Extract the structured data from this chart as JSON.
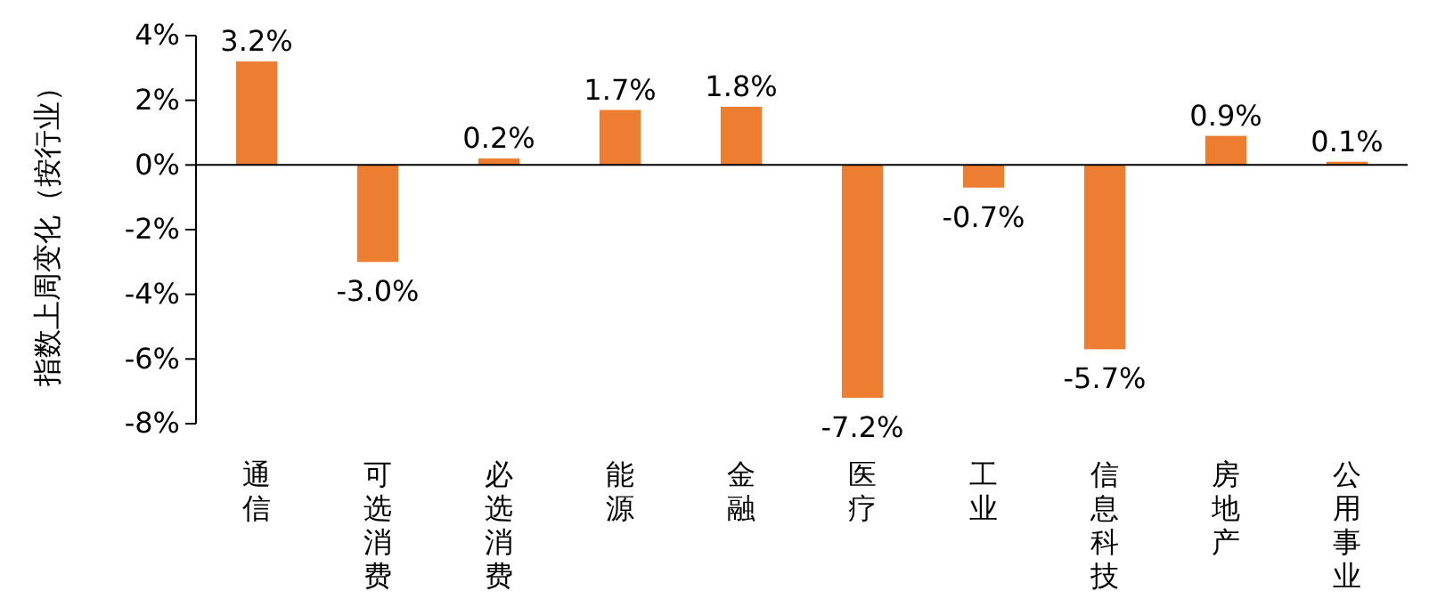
{
  "chart_data": {
    "type": "bar",
    "ylabel": "指数上周变化（按行业）",
    "categories": [
      "通信",
      "可选消费",
      "必选消费",
      "能源",
      "金融",
      "医疗",
      "工业",
      "信息科技",
      "房地产",
      "公用事业"
    ],
    "values": [
      3.2,
      -3.0,
      0.2,
      1.7,
      1.8,
      -7.2,
      -0.7,
      -5.7,
      0.9,
      0.1
    ],
    "value_labels": [
      "3.2%",
      "-3.0%",
      "0.2%",
      "1.7%",
      "1.8%",
      "-7.2%",
      "-0.7%",
      "-5.7%",
      "0.9%",
      "0.1%"
    ],
    "color": "#ed7d31",
    "ylim": [
      -8,
      4
    ],
    "yticks": [
      {
        "value": -8,
        "label": "-8%"
      },
      {
        "value": -6,
        "label": "-6%"
      },
      {
        "value": -4,
        "label": "-4%"
      },
      {
        "value": -2,
        "label": "-2%"
      },
      {
        "value": 0,
        "label": "0%"
      },
      {
        "value": 2,
        "label": "2%"
      },
      {
        "value": 4,
        "label": "4%"
      }
    ]
  }
}
